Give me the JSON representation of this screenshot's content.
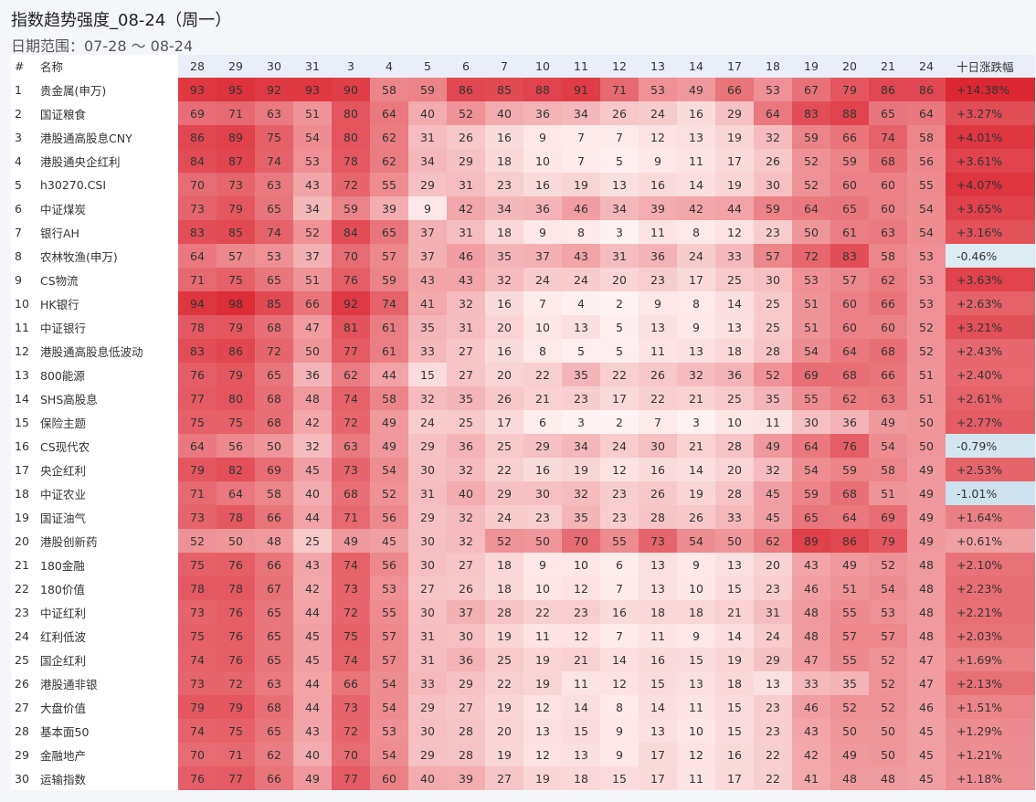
{
  "header": {
    "title": "指数趋势强度_08-24（周一）",
    "subtitle": "日期范围：07-28 ～ 08-24"
  },
  "table": {
    "columns": [
      "#",
      "名称",
      "28",
      "29",
      "30",
      "31",
      "3",
      "4",
      "5",
      "6",
      "7",
      "10",
      "11",
      "12",
      "13",
      "14",
      "17",
      "18",
      "19",
      "20",
      "21",
      "24",
      "十日涨跌幅"
    ],
    "rows": [
      [
        "1",
        "贵金属(申万)",
        93,
        95,
        92,
        93,
        90,
        58,
        59,
        86,
        85,
        88,
        91,
        71,
        53,
        49,
        66,
        53,
        67,
        79,
        86,
        86,
        "+14.38%"
      ],
      [
        "2",
        "国证粮食",
        69,
        71,
        63,
        51,
        80,
        64,
        40,
        52,
        40,
        36,
        34,
        26,
        24,
        16,
        29,
        64,
        83,
        88,
        65,
        64,
        "+3.27%"
      ],
      [
        "3",
        "港股通高股息CNY",
        86,
        89,
        75,
        54,
        80,
        62,
        31,
        26,
        16,
        9,
        7,
        7,
        12,
        13,
        19,
        32,
        59,
        66,
        74,
        58,
        "+4.01%"
      ],
      [
        "4",
        "港股通央企红利",
        84,
        87,
        74,
        53,
        78,
        62,
        34,
        29,
        18,
        10,
        7,
        5,
        9,
        11,
        17,
        26,
        52,
        59,
        68,
        56,
        "+3.61%"
      ],
      [
        "5",
        "h30270.CSI",
        70,
        73,
        63,
        43,
        72,
        55,
        29,
        31,
        23,
        16,
        19,
        13,
        16,
        14,
        19,
        30,
        52,
        60,
        60,
        55,
        "+4.07%"
      ],
      [
        "6",
        "中证煤炭",
        73,
        79,
        65,
        34,
        59,
        39,
        9,
        42,
        34,
        36,
        46,
        34,
        39,
        42,
        44,
        59,
        64,
        65,
        60,
        54,
        "+3.65%"
      ],
      [
        "7",
        "银行AH",
        83,
        85,
        74,
        52,
        84,
        65,
        37,
        31,
        18,
        9,
        8,
        3,
        11,
        8,
        12,
        23,
        50,
        61,
        63,
        54,
        "+3.16%"
      ],
      [
        "8",
        "农林牧渔(申万)",
        64,
        57,
        53,
        37,
        70,
        57,
        37,
        46,
        35,
        37,
        43,
        31,
        36,
        24,
        33,
        57,
        72,
        83,
        58,
        53,
        "-0.46%"
      ],
      [
        "9",
        "CS物流",
        71,
        75,
        65,
        51,
        76,
        59,
        43,
        43,
        32,
        24,
        24,
        20,
        23,
        17,
        25,
        30,
        53,
        57,
        62,
        53,
        "+3.63%"
      ],
      [
        "10",
        "HK银行",
        94,
        98,
        85,
        66,
        92,
        74,
        41,
        32,
        16,
        7,
        4,
        2,
        9,
        8,
        14,
        25,
        51,
        60,
        66,
        53,
        "+2.63%"
      ],
      [
        "11",
        "中证银行",
        78,
        79,
        68,
        47,
        81,
        61,
        35,
        31,
        20,
        10,
        13,
        5,
        13,
        9,
        13,
        25,
        51,
        60,
        60,
        52,
        "+3.21%"
      ],
      [
        "12",
        "港股通高股息低波动",
        83,
        86,
        72,
        50,
        77,
        61,
        33,
        27,
        16,
        8,
        5,
        5,
        11,
        13,
        18,
        28,
        54,
        64,
        68,
        52,
        "+2.43%"
      ],
      [
        "13",
        "800能源",
        76,
        79,
        65,
        36,
        62,
        44,
        15,
        27,
        20,
        22,
        35,
        22,
        26,
        32,
        36,
        52,
        69,
        68,
        66,
        51,
        "+2.40%"
      ],
      [
        "14",
        "SHS高股息",
        77,
        80,
        68,
        48,
        74,
        58,
        32,
        35,
        26,
        21,
        23,
        17,
        22,
        21,
        25,
        35,
        55,
        62,
        63,
        51,
        "+2.61%"
      ],
      [
        "15",
        "保险主题",
        75,
        75,
        68,
        42,
        72,
        49,
        24,
        25,
        17,
        6,
        3,
        2,
        7,
        3,
        10,
        11,
        30,
        36,
        49,
        50,
        "+2.77%"
      ],
      [
        "16",
        "CS现代农",
        64,
        56,
        50,
        32,
        63,
        49,
        29,
        36,
        25,
        29,
        34,
        24,
        30,
        21,
        28,
        49,
        64,
        76,
        54,
        50,
        "-0.79%"
      ],
      [
        "17",
        "央企红利",
        79,
        82,
        69,
        45,
        73,
        54,
        30,
        32,
        22,
        16,
        19,
        12,
        16,
        14,
        20,
        32,
        54,
        59,
        58,
        49,
        "+2.53%"
      ],
      [
        "18",
        "中证农业",
        71,
        64,
        58,
        40,
        68,
        52,
        31,
        40,
        29,
        30,
        32,
        23,
        26,
        19,
        28,
        45,
        59,
        68,
        51,
        49,
        "-1.01%"
      ],
      [
        "19",
        "国证油气",
        73,
        78,
        66,
        44,
        71,
        56,
        29,
        32,
        24,
        23,
        35,
        23,
        28,
        26,
        33,
        45,
        65,
        64,
        69,
        49,
        "+1.64%"
      ],
      [
        "20",
        "港股创新药",
        52,
        50,
        48,
        25,
        49,
        45,
        30,
        32,
        52,
        50,
        70,
        55,
        73,
        54,
        50,
        62,
        89,
        86,
        79,
        49,
        "+0.61%"
      ],
      [
        "21",
        "180金融",
        75,
        76,
        66,
        43,
        74,
        56,
        30,
        27,
        18,
        9,
        10,
        6,
        13,
        9,
        13,
        20,
        43,
        49,
        52,
        48,
        "+2.10%"
      ],
      [
        "22",
        "180价值",
        78,
        78,
        67,
        42,
        73,
        53,
        27,
        26,
        18,
        10,
        12,
        7,
        13,
        10,
        15,
        23,
        46,
        51,
        54,
        48,
        "+2.23%"
      ],
      [
        "23",
        "中证红利",
        73,
        76,
        65,
        44,
        72,
        55,
        30,
        37,
        28,
        22,
        23,
        16,
        18,
        18,
        21,
        31,
        48,
        55,
        53,
        48,
        "+2.21%"
      ],
      [
        "24",
        "红利低波",
        75,
        76,
        65,
        45,
        75,
        57,
        31,
        30,
        19,
        11,
        12,
        7,
        11,
        9,
        14,
        24,
        48,
        57,
        57,
        48,
        "+2.03%"
      ],
      [
        "25",
        "国企红利",
        74,
        76,
        65,
        45,
        74,
        57,
        31,
        36,
        25,
        19,
        21,
        14,
        16,
        15,
        19,
        29,
        47,
        55,
        52,
        47,
        "+1.69%"
      ],
      [
        "26",
        "港股通非银",
        73,
        72,
        63,
        44,
        66,
        54,
        33,
        29,
        22,
        19,
        11,
        12,
        15,
        13,
        18,
        13,
        33,
        35,
        52,
        47,
        "+2.13%"
      ],
      [
        "27",
        "大盘价值",
        79,
        79,
        68,
        44,
        73,
        54,
        29,
        27,
        19,
        12,
        14,
        8,
        14,
        11,
        15,
        23,
        46,
        52,
        52,
        46,
        "+1.51%"
      ],
      [
        "28",
        "基本面50",
        74,
        75,
        65,
        43,
        72,
        53,
        30,
        28,
        20,
        13,
        15,
        9,
        13,
        10,
        15,
        23,
        43,
        50,
        50,
        45,
        "+1.29%"
      ],
      [
        "29",
        "金融地产",
        70,
        71,
        62,
        40,
        70,
        54,
        29,
        28,
        19,
        12,
        13,
        9,
        17,
        12,
        16,
        22,
        42,
        49,
        50,
        45,
        "+1.21%"
      ],
      [
        "30",
        "运输指数",
        76,
        77,
        66,
        49,
        77,
        60,
        40,
        39,
        27,
        19,
        18,
        15,
        17,
        11,
        17,
        22,
        41,
        48,
        48,
        45,
        "+1.18%"
      ]
    ]
  }
}
